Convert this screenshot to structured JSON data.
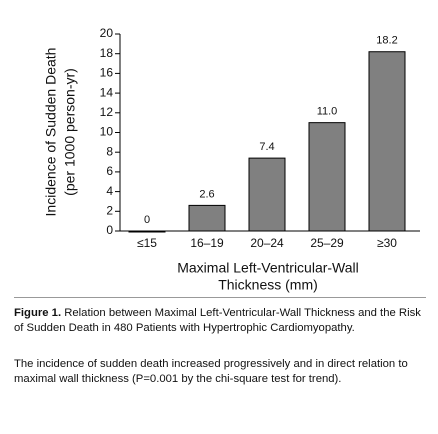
{
  "chart_data": {
    "type": "bar",
    "y_label_lines": [
      "Incidence of Sudden Death",
      "(per 1000 person-yr)"
    ],
    "x_label_lines": [
      "Maximal Left-Ventricular-Wall",
      "Thickness (mm)"
    ],
    "categories": [
      "≤15",
      "16–19",
      "20–24",
      "25–29",
      "≥30"
    ],
    "values": [
      0,
      2.6,
      7.4,
      11.0,
      18.2
    ],
    "value_labels": [
      "0",
      "2.6",
      "7.4",
      "11.0",
      "18.2"
    ],
    "color": "#808080",
    "ylim": [
      0,
      20
    ],
    "yticks": [
      0,
      2,
      4,
      6,
      8,
      10,
      12,
      14,
      16,
      18,
      20
    ]
  },
  "caption": {
    "figure_label": "Figure 1.",
    "title": "Relation between Maximal Left-Ventricular-Wall Thickness and the Risk of Sudden Death in 480 Patients with Hypertrophic Cardiomyopathy.",
    "text": "The incidence of sudden death increased progressively and in direct relation to maximal wall thickness (P=0.001 by the chi-square test for trend)."
  }
}
